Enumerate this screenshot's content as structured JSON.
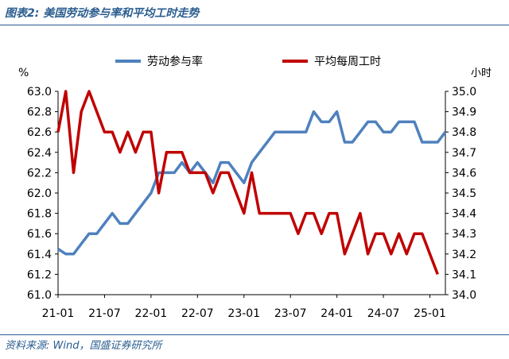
{
  "header": {
    "title": "图表2:  美国劳动参与率和平均工时走势"
  },
  "footer": {
    "source": "资料来源:  Wind，国盛证券研究所"
  },
  "colors": {
    "participation": "#4f81bd",
    "hours": "#c00000",
    "theme": "#2a5d8f"
  },
  "chart_data": {
    "type": "line",
    "title": "",
    "left_axis": {
      "unit": "%",
      "range": [
        61.0,
        63.0
      ],
      "ticks": [
        "61.0",
        "61.2",
        "61.4",
        "61.6",
        "61.8",
        "62.0",
        "62.2",
        "62.4",
        "62.6",
        "62.8",
        "63.0"
      ]
    },
    "right_axis": {
      "unit": "小时",
      "range": [
        34.0,
        35.0
      ],
      "ticks": [
        "34.0",
        "34.1",
        "34.2",
        "34.3",
        "34.4",
        "34.5",
        "34.6",
        "34.7",
        "34.8",
        "34.9",
        "35.0"
      ]
    },
    "x_tick_labels": [
      "21-01",
      "21-07",
      "22-01",
      "22-07",
      "23-01",
      "23-07",
      "24-01",
      "24-07",
      "25-01"
    ],
    "grid": false,
    "legend_position": "top",
    "series": [
      {
        "name": "劳动参与率",
        "axis": "left",
        "values": [
          61.45,
          61.4,
          61.4,
          61.5,
          61.6,
          61.6,
          61.7,
          61.8,
          61.7,
          61.7,
          61.8,
          61.9,
          62.0,
          62.2,
          62.2,
          62.2,
          62.3,
          62.2,
          62.3,
          62.2,
          62.1,
          62.3,
          62.3,
          62.2,
          62.1,
          62.3,
          62.4,
          62.5,
          62.6,
          62.6,
          62.6,
          62.6,
          62.6,
          62.8,
          62.7,
          62.7,
          62.8,
          62.5,
          62.5,
          62.6,
          62.7,
          62.7,
          62.6,
          62.6,
          62.7,
          62.7,
          62.7,
          62.5,
          62.5,
          62.5,
          62.6
        ]
      },
      {
        "name": "平均每周工时",
        "axis": "right",
        "values": [
          34.8,
          35.0,
          34.6,
          34.9,
          35.0,
          34.9,
          34.8,
          34.8,
          34.7,
          34.8,
          34.7,
          34.8,
          34.8,
          34.5,
          34.7,
          34.7,
          34.7,
          34.6,
          34.6,
          34.6,
          34.5,
          34.6,
          34.6,
          34.5,
          34.4,
          34.6,
          34.4,
          34.4,
          34.4,
          34.4,
          34.4,
          34.3,
          34.4,
          34.4,
          34.3,
          34.4,
          34.4,
          34.2,
          34.3,
          34.4,
          34.2,
          34.3,
          34.3,
          34.2,
          34.3,
          34.2,
          34.3,
          34.3,
          34.2,
          34.1
        ]
      }
    ]
  }
}
